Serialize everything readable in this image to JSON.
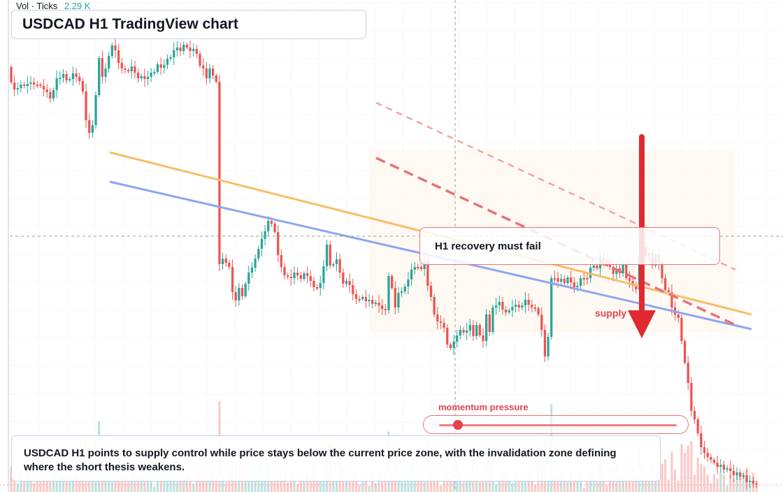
{
  "volume": {
    "label": "Vol · Ticks",
    "value": "2.29 K"
  },
  "header": {
    "title": "USDCAD H1 TradingView chart"
  },
  "annotations": {
    "warning": "H1 recovery must fail",
    "supply": "supply",
    "momentum": "momentum pressure",
    "summary": "USDCAD H1 points to supply control while price stays below the current price zone, with the invalidation zone defining where the short thesis weakens."
  },
  "colors": {
    "bull": "#26a69a",
    "bear": "#ef5350",
    "accent": "#e5434e",
    "trend_orange": "#f7bd6a",
    "trend_blue": "#8ea6ee"
  },
  "indicators": {
    "momentum_pressure": 0.08
  },
  "chart_data": {
    "type": "candlestick",
    "symbol": "USDCAD",
    "timeframe": "H1",
    "shapes": [
      "trendline-orange",
      "trendline-blue",
      "dashed-channel-upper",
      "dashed-channel-lower",
      "supply-zone",
      "down-arrow",
      "crosshair"
    ],
    "series": [
      {
        "name": "price",
        "closes": [
          118,
          128,
          126,
          121,
          123,
          120,
          118,
          121,
          121,
          123,
          128,
          132,
          141,
          129,
          112,
          111,
          106,
          115,
          113,
          105,
          110,
          116,
          131,
          172,
          190,
          179,
          136,
          83,
          110,
          98,
          80,
          65,
          72,
          90,
          98,
          100,
          102,
          95,
          104,
          112,
          109,
          113,
          110,
          104,
          103,
          92,
          97,
          93,
          84,
          82,
          72,
          68,
          73,
          64,
          68,
          73,
          70,
          77,
          94,
          98,
          112,
          98,
          108,
          117,
          378,
          370,
          376,
          382,
          418,
          430,
          412,
          424,
          406,
          390,
          383,
          370,
          356,
          342,
          331,
          316,
          320,
          332,
          365,
          382,
          394,
          396,
          398,
          390,
          394,
          399,
          391,
          395,
          402,
          411,
          412,
          405,
          381,
          350,
          380,
          378,
          371,
          390,
          406,
          402,
          408,
          421,
          428,
          428,
          425,
          431,
          429,
          435,
          433,
          437,
          442,
          444,
          395,
          412,
          440,
          419,
          417,
          410,
          400,
          386,
          382,
          382,
          385,
          374,
          409,
          425,
          450,
          460,
          462,
          469,
          493,
          498,
          489,
          480,
          472,
          476,
          473,
          465,
          481,
          465,
          480,
          488,
          450,
          475,
          440,
          437,
          432,
          443,
          447,
          444,
          439,
          436,
          440,
          437,
          429,
          436,
          440,
          441,
          450,
          472,
          510,
          482,
          398,
          398,
          403,
          399,
          405,
          397,
          404,
          411,
          409,
          398,
          398,
          398,
          383,
          380,
          384,
          369,
          373,
          374,
          382,
          392,
          384,
          391,
          379,
          398,
          402,
          409,
          414,
          366,
          354,
          366,
          362,
          380,
          365,
          376,
          398,
          415,
          418,
          440,
          450,
          455,
          488,
          519,
          548,
          588,
          600,
          620,
          640,
          648,
          654,
          658,
          662,
          668,
          665,
          672,
          670,
          674,
          680,
          676,
          682,
          680,
          690,
          688,
          692,
          694
        ],
        "opens": [
          96,
          118,
          128,
          126,
          121,
          123,
          120,
          118,
          121,
          121,
          123,
          128,
          132,
          141,
          129,
          112,
          111,
          106,
          115,
          113,
          105,
          110,
          116,
          131,
          172,
          190,
          179,
          136,
          83,
          110,
          98,
          80,
          65,
          72,
          90,
          98,
          100,
          102,
          95,
          104,
          112,
          109,
          113,
          110,
          104,
          103,
          92,
          97,
          93,
          84,
          82,
          72,
          68,
          73,
          64,
          68,
          73,
          70,
          77,
          94,
          98,
          112,
          98,
          108,
          117,
          378,
          370,
          376,
          382,
          418,
          430,
          412,
          424,
          406,
          390,
          383,
          370,
          356,
          342,
          331,
          316,
          320,
          332,
          365,
          382,
          394,
          396,
          398,
          390,
          394,
          399,
          391,
          395,
          402,
          411,
          412,
          405,
          381,
          350,
          380,
          378,
          371,
          390,
          406,
          402,
          408,
          421,
          428,
          428,
          425,
          431,
          429,
          435,
          433,
          437,
          442,
          444,
          395,
          412,
          440,
          419,
          417,
          410,
          400,
          386,
          382,
          382,
          385,
          374,
          409,
          425,
          450,
          460,
          462,
          469,
          493,
          498,
          489,
          480,
          472,
          476,
          473,
          465,
          481,
          465,
          480,
          488,
          450,
          475,
          440,
          437,
          432,
          443,
          447,
          444,
          439,
          436,
          440,
          437,
          429,
          436,
          440,
          441,
          450,
          472,
          510,
          482,
          398,
          398,
          403,
          399,
          405,
          397,
          404,
          411,
          409,
          398,
          398,
          398,
          383,
          380,
          384,
          369,
          373,
          374,
          382,
          392,
          384,
          391,
          379,
          398,
          402,
          409,
          414,
          366,
          354,
          366,
          362,
          380,
          365,
          376,
          398,
          415,
          418,
          440,
          450,
          455,
          488,
          519,
          548,
          588,
          600,
          620,
          640,
          648,
          654,
          658,
          662,
          668,
          665,
          672,
          670,
          674,
          680,
          676,
          682,
          680,
          690,
          688,
          692
        ]
      }
    ]
  }
}
